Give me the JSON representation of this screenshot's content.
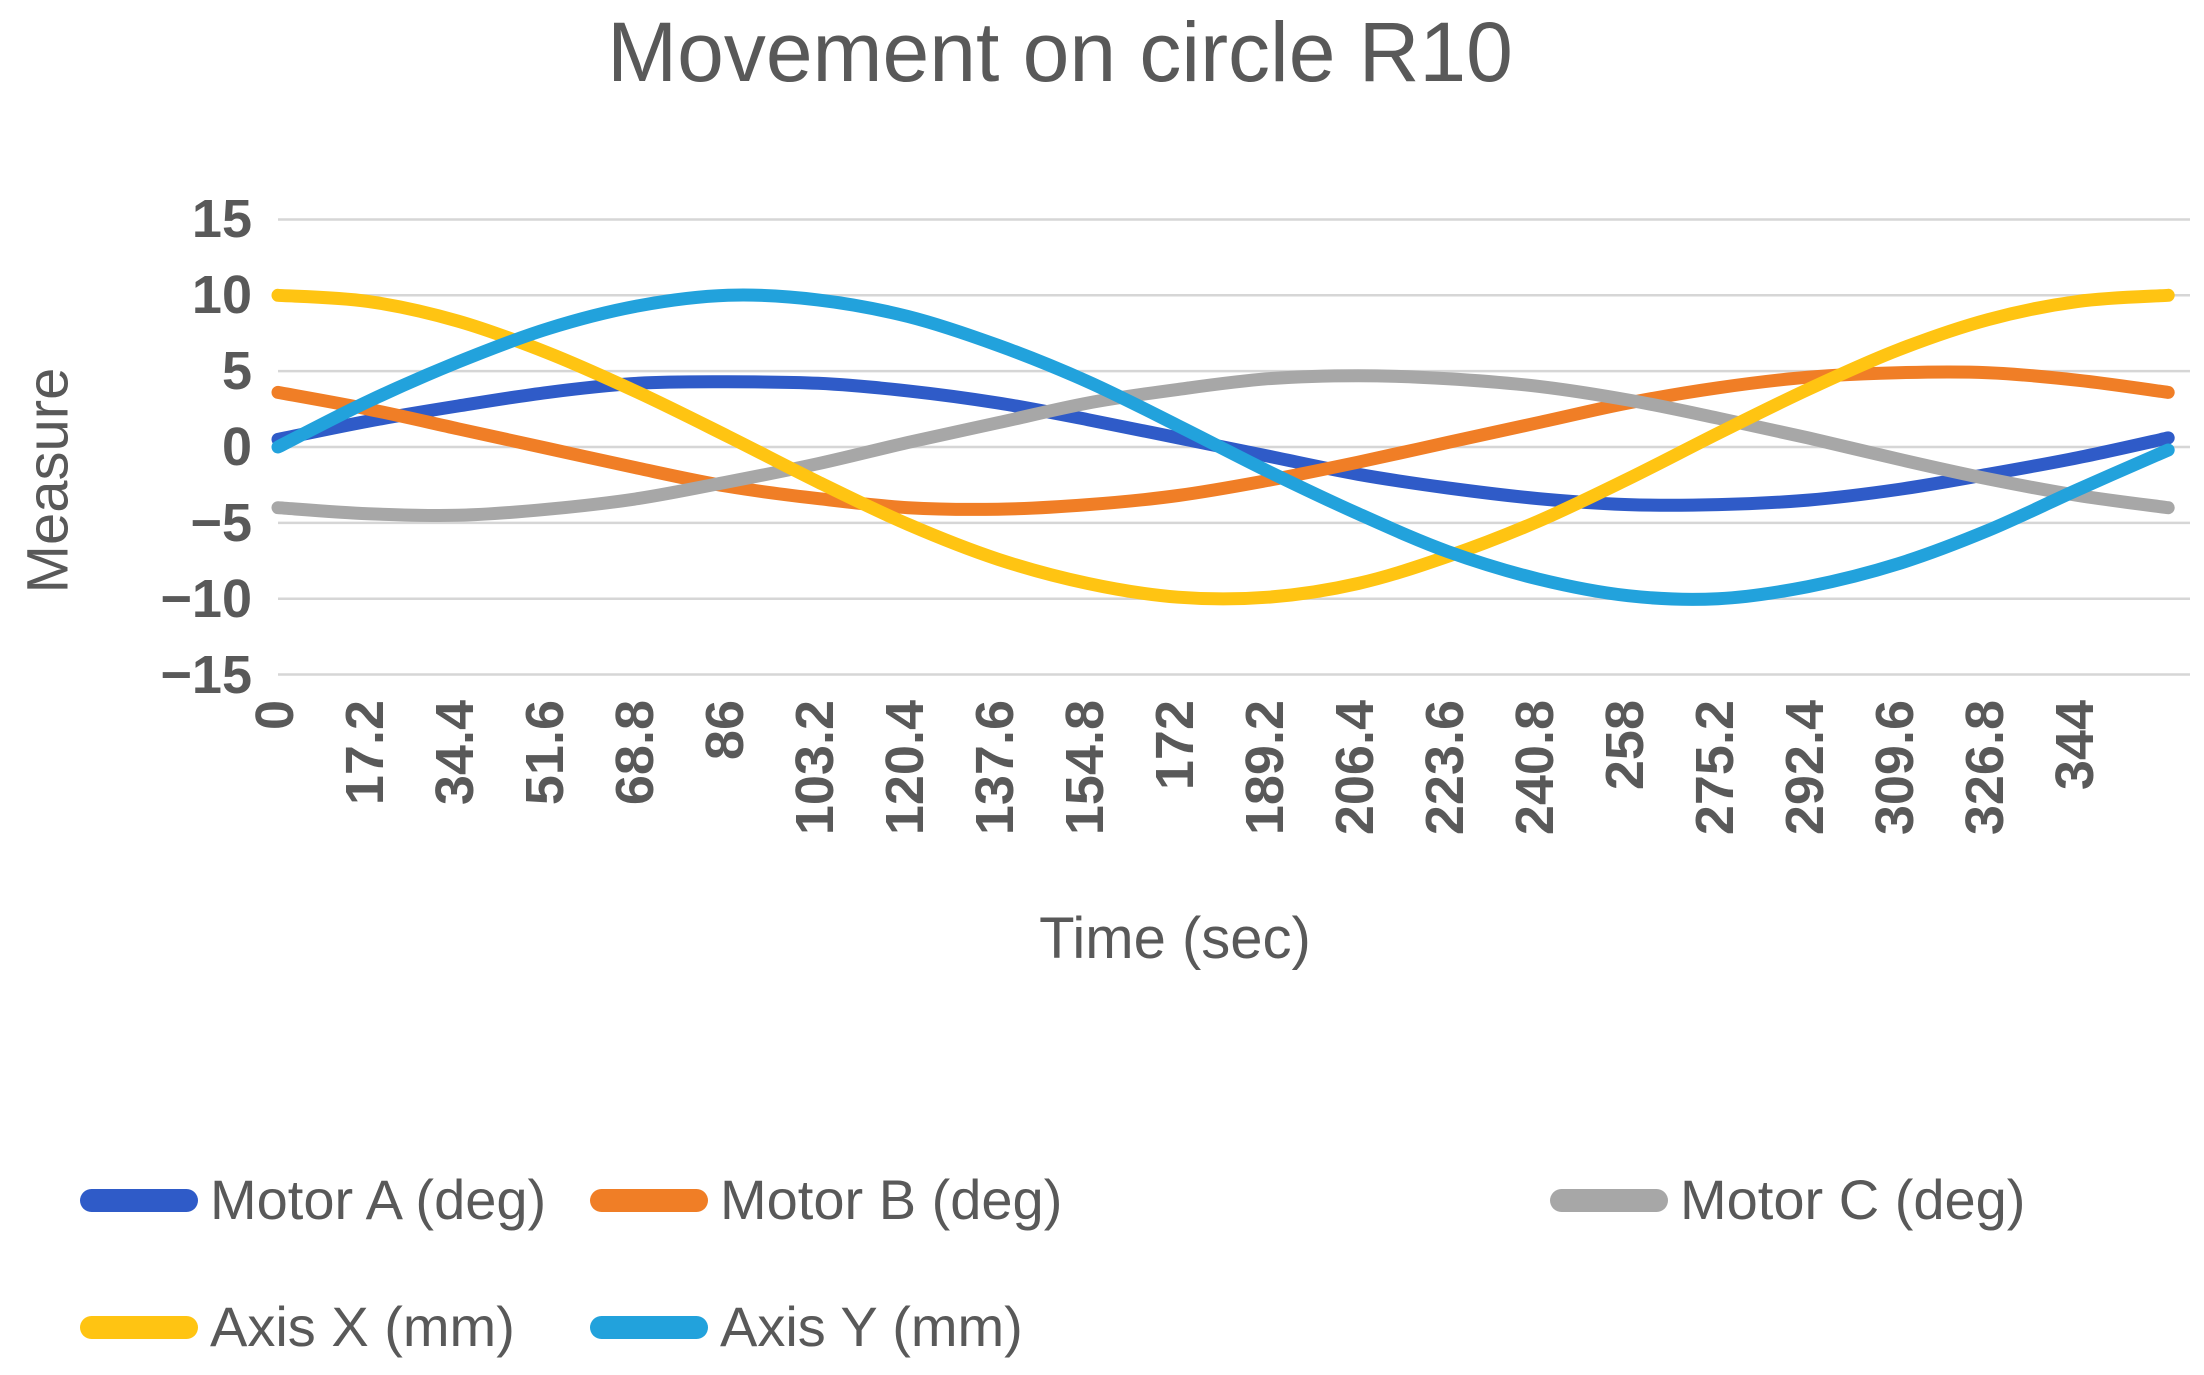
{
  "chart_data": {
    "type": "line",
    "title": "Movement on circle R10",
    "xlabel": "Time (sec)",
    "ylabel": "Measure",
    "ylim": [
      -15,
      15
    ],
    "y_ticks": [
      15,
      10,
      5,
      0,
      -5,
      -10,
      -15
    ],
    "y_tick_labels": [
      "15",
      "10",
      "5",
      "0",
      "−5",
      "−10",
      "−15"
    ],
    "grid": "horizontal-only",
    "legend_position": "bottom",
    "x_tick_labels": [
      "0",
      "17.2",
      "34.4",
      "51.6",
      "68.8",
      "86",
      "103.2",
      "120.4",
      "137.6",
      "154.8",
      "172",
      "189.2",
      "206.4",
      "223.6",
      "240.8",
      "258",
      "275.2",
      "292.4",
      "309.6",
      "326.8",
      "344"
    ],
    "x": [
      0,
      17.2,
      34.4,
      51.6,
      68.8,
      86,
      103.2,
      120.4,
      137.6,
      154.8,
      172,
      189.2,
      206.4,
      223.6,
      240.8,
      258,
      275.2,
      292.4,
      309.6,
      326.8,
      344,
      361.2
    ],
    "series": [
      {
        "name": "Motor A (deg)",
        "color": "#2F5BC8",
        "values": [
          0.5,
          1.7,
          2.7,
          3.6,
          4.2,
          4.3,
          4.2,
          3.7,
          2.9,
          1.8,
          0.6,
          -0.6,
          -1.8,
          -2.7,
          -3.4,
          -3.8,
          -3.8,
          -3.5,
          -2.8,
          -1.8,
          -0.7,
          0.6
        ]
      },
      {
        "name": "Motor B (deg)",
        "color": "#F07E26",
        "values": [
          3.6,
          2.5,
          1.2,
          -0.1,
          -1.4,
          -2.6,
          -3.4,
          -4.0,
          -4.1,
          -3.8,
          -3.2,
          -2.2,
          -1.0,
          0.3,
          1.6,
          2.9,
          3.9,
          4.6,
          4.9,
          4.9,
          4.4,
          3.6
        ]
      },
      {
        "name": "Motor C (deg)",
        "color": "#A7A7A7",
        "values": [
          -4.0,
          -4.4,
          -4.5,
          -4.1,
          -3.4,
          -2.3,
          -1.1,
          0.3,
          1.6,
          2.9,
          3.8,
          4.5,
          4.7,
          4.5,
          4.0,
          3.1,
          1.9,
          0.6,
          -0.8,
          -2.1,
          -3.2,
          -4.0
        ]
      },
      {
        "name": "Axis X (mm)",
        "color": "#FFC412",
        "values": [
          10,
          9.6,
          8.3,
          6.2,
          3.6,
          0.7,
          -2.3,
          -5.1,
          -7.4,
          -9.0,
          -9.9,
          -9.9,
          -9.0,
          -7.2,
          -4.9,
          -2.1,
          0.9,
          3.8,
          6.4,
          8.4,
          9.6,
          10.0
        ]
      },
      {
        "name": "Axis Y (mm)",
        "color": "#22A2DC",
        "values": [
          0,
          3.0,
          5.6,
          7.8,
          9.3,
          10.0,
          9.7,
          8.6,
          6.7,
          4.3,
          1.4,
          -1.6,
          -4.4,
          -6.9,
          -8.7,
          -9.8,
          -10.0,
          -9.2,
          -7.7,
          -5.5,
          -2.8,
          -0.2
        ]
      }
    ]
  },
  "colors": {
    "text": "#595959",
    "gridline": "#D6D6D6",
    "background": "#FFFFFF"
  }
}
